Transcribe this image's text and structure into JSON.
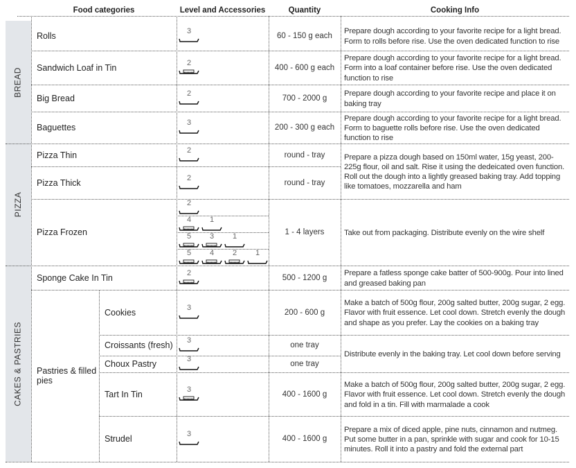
{
  "headers": {
    "food_categories": "Food categories",
    "level": "Level and Accessories",
    "quantity": "Quantity",
    "info": "Cooking Info"
  },
  "categories": [
    {
      "label": "BREAD"
    },
    {
      "label": "PIZZA"
    },
    {
      "label": "CAKES & PASTRIES"
    }
  ],
  "group_label": "Pastries & filled pies",
  "rows": [
    {
      "name": "Rolls",
      "quantity": "60 - 150 g each",
      "levels": [
        [
          {
            "level": "3",
            "accessory": "wire-shelf"
          }
        ]
      ]
    },
    {
      "name": "Sandwich Loaf in Tin",
      "quantity": "400 - 600 g each",
      "levels": [
        [
          {
            "level": "2",
            "accessory": "wire-shelf-with-tin"
          }
        ]
      ]
    },
    {
      "name": "Big Bread",
      "quantity": "700 - 2000 g",
      "levels": [
        [
          {
            "level": "2",
            "accessory": "wire-shelf"
          }
        ]
      ]
    },
    {
      "name": "Baguettes",
      "quantity": "200 - 300 g each",
      "levels": [
        [
          {
            "level": "3",
            "accessory": "wire-shelf"
          }
        ]
      ]
    },
    {
      "name": "Pizza Thin",
      "quantity": "round - tray",
      "levels": [
        [
          {
            "level": "2",
            "accessory": "wire-shelf"
          }
        ]
      ]
    },
    {
      "name": "Pizza Thick",
      "quantity": "round - tray",
      "levels": [
        [
          {
            "level": "2",
            "accessory": "wire-shelf"
          }
        ]
      ]
    },
    {
      "name": "Pizza Frozen",
      "quantity": "1 - 4 layers",
      "levels": [
        [
          {
            "level": "2",
            "accessory": "wire-shelf"
          }
        ],
        [
          {
            "level": "4",
            "accessory": "wire-shelf-with-tin"
          },
          {
            "level": "1",
            "accessory": "wire-shelf"
          }
        ],
        [
          {
            "level": "5",
            "accessory": "wire-shelf-with-tin"
          },
          {
            "level": "3",
            "accessory": "wire-shelf-with-tin"
          },
          {
            "level": "1",
            "accessory": "wire-shelf"
          }
        ],
        [
          {
            "level": "5",
            "accessory": "wire-shelf-with-tin"
          },
          {
            "level": "4",
            "accessory": "wire-shelf-with-tin"
          },
          {
            "level": "2",
            "accessory": "wire-shelf-with-tin"
          },
          {
            "level": "1",
            "accessory": "wire-shelf"
          }
        ]
      ]
    },
    {
      "name": "Sponge Cake In Tin",
      "quantity": "500 - 1200 g",
      "levels": [
        [
          {
            "level": "2",
            "accessory": "wire-shelf-with-tin"
          }
        ]
      ]
    },
    {
      "name": "Cookies",
      "quantity": "200 - 600 g",
      "levels": [
        [
          {
            "level": "3",
            "accessory": "wire-shelf"
          }
        ]
      ]
    },
    {
      "name": "Croissants (fresh)",
      "quantity": "one tray",
      "levels": [
        [
          {
            "level": "3",
            "accessory": "wire-shelf"
          }
        ]
      ]
    },
    {
      "name": "Choux Pastry",
      "quantity": "one tray",
      "levels": [
        [
          {
            "level": "3",
            "accessory": "wire-shelf"
          }
        ]
      ]
    },
    {
      "name": "Tart In Tin",
      "quantity": "400 - 1600 g",
      "levels": [
        [
          {
            "level": "3",
            "accessory": "wire-shelf-with-tin"
          }
        ]
      ]
    },
    {
      "name": "Strudel",
      "quantity": "400 - 1600 g",
      "levels": [
        [
          {
            "level": "3",
            "accessory": "wire-shelf"
          }
        ]
      ]
    }
  ],
  "info": [
    "Prepare dough according to your favorite recipe for a light bread. Form to rolls before rise. Use the oven dedicated function to rise",
    "Prepare dough according to your favorite recipe for a light bread. Form into a loaf container before rise. Use the oven dedicated function to rise",
    "Prepare dough according to your favorite recipe and place it on baking tray",
    "Prepare dough according to your favorite recipe for a light bread. Form to baguette rolls before rise. Use the oven dedicated function to rise",
    "Prepare a pizza dough based on 150ml water, 15g yeast, 200-225g flour, oil and salt. Rise it using the dedeicated oven function. Roll out the dough into a lightly greased baking tray. Add topping like tomatoes, mozzarella and ham",
    "Take out from packaging. Distribute evenly on the wire shelf",
    "Prepare a fatless sponge cake batter of 500-900g. Pour into lined and greased baking pan",
    "Make a batch of 500g flour, 200g salted butter, 200g sugar, 2 egg. Flavor with fruit essence. Let cool down. Stretch evenly the dough and shape as you prefer. Lay the cookies on a baking tray",
    "Distribute evenly in the baking tray. Let cool down before serving",
    "Make a batch of 500g flour, 200g salted butter, 200g sugar, 2 egg. Flavor with fruit essence. Let cool down. Stretch evenly the dough and fold in a tin. Fill with marmalade a cook",
    "Prepare a mix of diced apple, pine nuts, cinnamon and nutmeg. Put some butter in a pan, sprinkle with sugar and cook for 10-15 minutes. Roll it into a pastry and fold the external part"
  ],
  "colors": {
    "category_band": "#e3e6ea",
    "text": "#2b2b2b"
  }
}
